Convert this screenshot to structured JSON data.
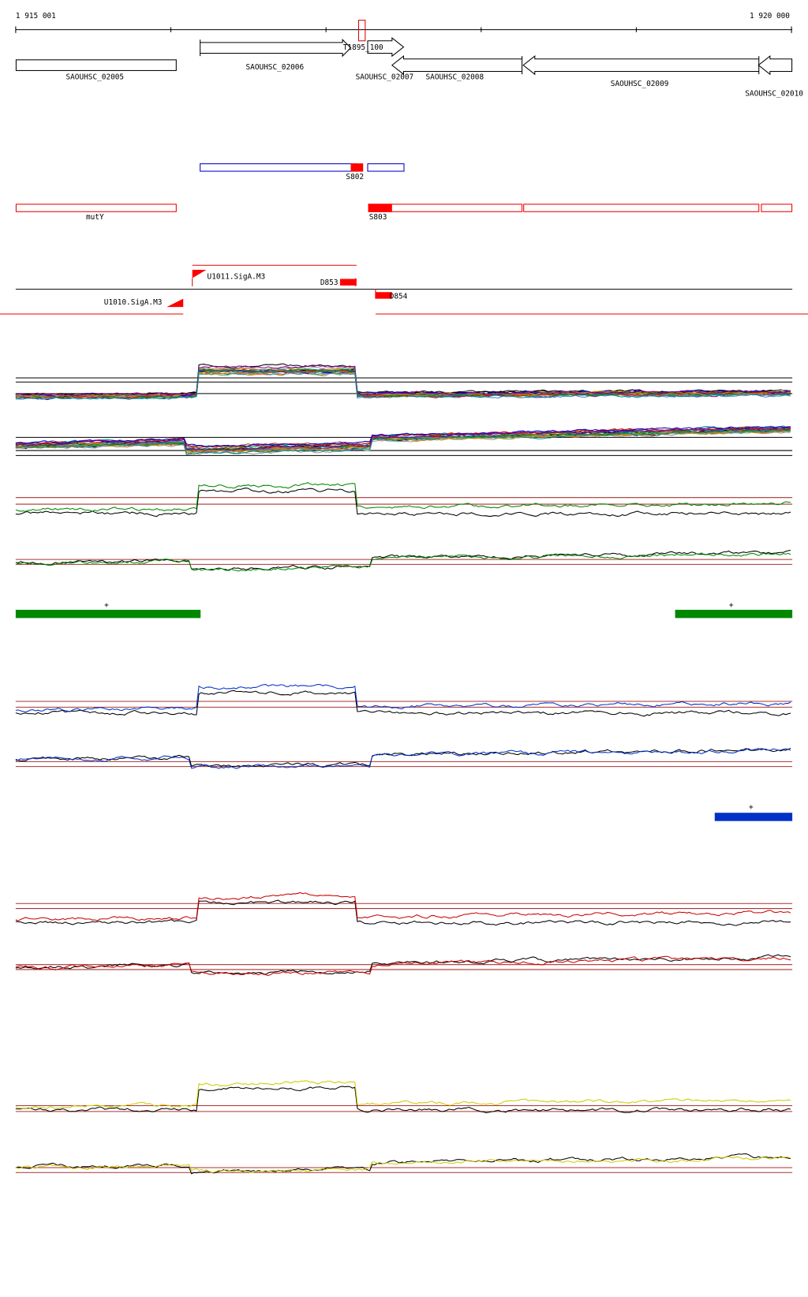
{
  "axis": {
    "start_label": "1 915 001",
    "end_label": "1 920 000"
  },
  "genes": [
    "SAOUHSC_02005",
    "SAOUHSC_02006",
    "T1895_100",
    "SAOUHSC_02007",
    "SAOUHSC_02008",
    "SAOUHSC_02009",
    "SAOUHSC_02010"
  ],
  "segments": {
    "blue": [
      "S802"
    ],
    "red": [
      "mutY",
      "S803"
    ]
  },
  "features": [
    "U1011.SigA.M3",
    "D853",
    "U1010.SigA.M3",
    "D854"
  ],
  "markers": [
    "+",
    "+",
    "+"
  ]
}
